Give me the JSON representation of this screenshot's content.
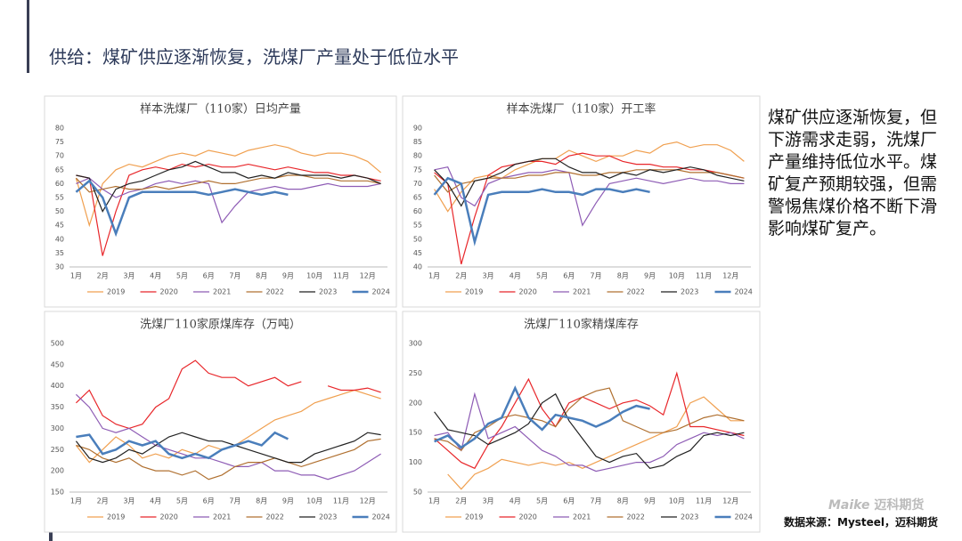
{
  "title": "供给：煤矿供应逐渐恢复，洗煤厂产量处于低位水平",
  "summary": "煤矿供应逐渐恢复，但下游需求走弱，洗煤厂产量维持低位水平。煤矿复产预期较强，但需警惕焦煤价格不断下滑影响煤矿复产。",
  "logo_brand": "Maike",
  "logo_name": "迈科期货",
  "source": "数据来源：Mysteel，迈科期货",
  "chart_data": [
    {
      "type": "line",
      "title": "样本洗煤厂（110家）日均产量",
      "categories": [
        "1月",
        null,
        "2月",
        null,
        "3月",
        null,
        "4月",
        null,
        "5月",
        null,
        "6月",
        null,
        "7月",
        null,
        "8月",
        null,
        "9月",
        null,
        "10月",
        null,
        "11月",
        null,
        "12月",
        null
      ],
      "ylim": [
        30,
        80
      ],
      "yticks": [
        30,
        35,
        40,
        45,
        50,
        55,
        60,
        65,
        70,
        75,
        80
      ],
      "series": [
        {
          "name": "2019",
          "color": "#f0a050",
          "values": [
            62,
            45,
            60,
            65,
            67,
            66,
            68,
            70,
            71,
            70,
            72,
            71,
            70,
            72,
            73,
            74,
            73,
            71,
            70,
            71,
            71,
            70,
            68,
            64
          ]
        },
        {
          "name": "2020",
          "color": "#e8262a",
          "values": [
            63,
            62,
            34,
            50,
            63,
            65,
            66,
            65,
            67,
            66,
            67,
            66,
            66,
            67,
            66,
            65,
            66,
            65,
            64,
            64,
            63,
            63,
            62,
            61
          ]
        },
        {
          "name": "2021",
          "color": "#8e5cb5",
          "values": [
            60,
            62,
            58,
            55,
            57,
            58,
            60,
            61,
            60,
            61,
            60,
            46,
            52,
            57,
            58,
            59,
            58,
            58,
            59,
            60,
            59,
            59,
            59,
            60
          ]
        },
        {
          "name": "2022",
          "color": "#b07030",
          "values": [
            62,
            57,
            58,
            59,
            58,
            58,
            59,
            58,
            59,
            60,
            61,
            60,
            60,
            61,
            62,
            62,
            63,
            63,
            62,
            62,
            61,
            61,
            61,
            60
          ]
        },
        {
          "name": "2023",
          "color": "#222222",
          "values": [
            63,
            62,
            50,
            58,
            60,
            61,
            63,
            65,
            66,
            68,
            66,
            64,
            64,
            62,
            63,
            62,
            64,
            63,
            63,
            63,
            62,
            63,
            62,
            60
          ]
        },
        {
          "name": "2024",
          "color": "#4a7ebb",
          "values": [
            57,
            61,
            55,
            42,
            55,
            57,
            57,
            57,
            57,
            57,
            56,
            57,
            58,
            57,
            56,
            57,
            56,
            null,
            null,
            null,
            null,
            null,
            null,
            null
          ]
        }
      ]
    },
    {
      "type": "line",
      "title": "样本洗煤厂（110家）开工率",
      "categories": [
        "1月",
        null,
        "2月",
        null,
        "3月",
        null,
        "4月",
        null,
        "5月",
        null,
        "6月",
        null,
        "7月",
        null,
        "8月",
        null,
        "9月",
        null,
        "10月",
        null,
        "11月",
        null,
        "12月",
        null
      ],
      "ylim": [
        40,
        90
      ],
      "yticks": [
        40,
        45,
        50,
        55,
        60,
        65,
        70,
        75,
        80,
        85,
        90
      ],
      "series": [
        {
          "name": "2019",
          "color": "#f0a050",
          "values": [
            68,
            60,
            67,
            72,
            73,
            72,
            75,
            77,
            79,
            79,
            82,
            80,
            78,
            80,
            80,
            82,
            81,
            84,
            85,
            83,
            84,
            84,
            82,
            78
          ]
        },
        {
          "name": "2020",
          "color": "#e8262a",
          "values": [
            74,
            70,
            41,
            58,
            73,
            76,
            77,
            78,
            78,
            77,
            80,
            81,
            80,
            80,
            78,
            77,
            77,
            76,
            76,
            75,
            75,
            74,
            73,
            72
          ]
        },
        {
          "name": "2021",
          "color": "#8e5cb5",
          "values": [
            75,
            76,
            65,
            62,
            70,
            72,
            73,
            74,
            74,
            75,
            74,
            55,
            63,
            70,
            71,
            72,
            71,
            70,
            71,
            72,
            71,
            71,
            70,
            70
          ]
        },
        {
          "name": "2022",
          "color": "#b07030",
          "values": [
            73,
            67,
            70,
            71,
            72,
            72,
            72,
            73,
            73,
            74,
            74,
            73,
            73,
            74,
            74,
            75,
            75,
            75,
            75,
            74,
            74,
            74,
            73,
            72
          ]
        },
        {
          "name": "2023",
          "color": "#222222",
          "values": [
            75,
            70,
            62,
            71,
            72,
            74,
            77,
            78,
            79,
            79,
            76,
            74,
            74,
            72,
            74,
            73,
            75,
            74,
            75,
            76,
            75,
            73,
            72,
            71
          ]
        },
        {
          "name": "2024",
          "color": "#4a7ebb",
          "values": [
            66,
            72,
            70,
            49,
            66,
            67,
            67,
            67,
            68,
            67,
            67,
            66,
            68,
            68,
            67,
            68,
            67,
            null,
            null,
            null,
            null,
            null,
            null,
            null
          ]
        }
      ]
    },
    {
      "type": "line",
      "title": "洗煤厂110家原煤库存（万吨）",
      "categories": [
        "1月",
        null,
        "2月",
        null,
        "3月",
        null,
        "4月",
        null,
        "5月",
        null,
        "6月",
        null,
        "7月",
        null,
        "8月",
        null,
        "9月",
        null,
        "10月",
        null,
        "11月",
        null,
        "12月",
        null
      ],
      "ylim": [
        150,
        500
      ],
      "yticks": [
        150,
        200,
        250,
        300,
        350,
        400,
        450,
        500
      ],
      "series": [
        {
          "name": "2019",
          "color": "#f0a050",
          "values": [
            260,
            220,
            250,
            280,
            260,
            230,
            240,
            230,
            250,
            240,
            260,
            250,
            260,
            280,
            300,
            320,
            330,
            340,
            360,
            370,
            380,
            390,
            380,
            370
          ]
        },
        {
          "name": "2020",
          "color": "#e8262a",
          "values": [
            360,
            390,
            330,
            310,
            300,
            310,
            350,
            370,
            440,
            460,
            430,
            420,
            420,
            400,
            410,
            420,
            400,
            410,
            null,
            400,
            390,
            390,
            395,
            385
          ]
        },
        {
          "name": "2021",
          "color": "#8e5cb5",
          "values": [
            380,
            350,
            300,
            290,
            300,
            280,
            260,
            250,
            240,
            230,
            230,
            220,
            210,
            210,
            220,
            200,
            200,
            190,
            190,
            180,
            190,
            200,
            220,
            240
          ]
        },
        {
          "name": "2022",
          "color": "#b07030",
          "values": [
            260,
            250,
            230,
            220,
            230,
            210,
            200,
            200,
            190,
            200,
            180,
            190,
            210,
            220,
            220,
            230,
            220,
            210,
            220,
            230,
            240,
            250,
            270,
            275
          ]
        },
        {
          "name": "2023",
          "color": "#222222",
          "values": [
            270,
            230,
            220,
            230,
            250,
            240,
            260,
            280,
            290,
            280,
            270,
            270,
            260,
            250,
            240,
            230,
            220,
            220,
            240,
            250,
            260,
            270,
            290,
            285
          ]
        },
        {
          "name": "2024",
          "color": "#4a7ebb",
          "values": [
            280,
            285,
            240,
            250,
            270,
            260,
            270,
            240,
            230,
            240,
            230,
            250,
            260,
            270,
            260,
            290,
            275,
            null,
            null,
            null,
            null,
            null,
            null,
            null
          ]
        }
      ]
    },
    {
      "type": "line",
      "title": "洗煤厂110家精煤库存",
      "categories": [
        "1月",
        null,
        "2月",
        null,
        "3月",
        null,
        "4月",
        null,
        "5月",
        null,
        "6月",
        null,
        "7月",
        null,
        "8月",
        null,
        "9月",
        null,
        "10月",
        null,
        "11月",
        null,
        "12月",
        null
      ],
      "ylim": [
        50,
        300
      ],
      "yticks": [
        50,
        100,
        150,
        200,
        250,
        300
      ],
      "series": [
        {
          "name": "2019",
          "color": "#f0a050",
          "values": [
            null,
            80,
            55,
            80,
            90,
            105,
            100,
            95,
            100,
            95,
            100,
            90,
            100,
            110,
            120,
            130,
            140,
            150,
            160,
            200,
            210,
            190,
            170,
            170
          ]
        },
        {
          "name": "2020",
          "color": "#e8262a",
          "values": [
            140,
            120,
            100,
            90,
            130,
            160,
            200,
            240,
            190,
            160,
            200,
            210,
            200,
            190,
            200,
            205,
            195,
            180,
            250,
            160,
            160,
            155,
            150,
            145
          ]
        },
        {
          "name": "2021",
          "color": "#8e5cb5",
          "values": [
            145,
            150,
            120,
            215,
            140,
            150,
            160,
            140,
            120,
            110,
            95,
            95,
            85,
            90,
            95,
            100,
            100,
            110,
            130,
            140,
            150,
            145,
            150,
            140
          ]
        },
        {
          "name": "2022",
          "color": "#b07030",
          "values": [
            140,
            135,
            120,
            150,
            160,
            175,
            180,
            175,
            170,
            160,
            190,
            210,
            220,
            225,
            170,
            160,
            150,
            150,
            155,
            165,
            175,
            180,
            175,
            170
          ]
        },
        {
          "name": "2023",
          "color": "#222222",
          "values": [
            185,
            155,
            150,
            145,
            130,
            140,
            150,
            165,
            200,
            215,
            170,
            140,
            110,
            100,
            110,
            115,
            90,
            95,
            110,
            120,
            145,
            150,
            145,
            150
          ]
        },
        {
          "name": "2024",
          "color": "#4a7ebb",
          "values": [
            135,
            145,
            125,
            140,
            165,
            175,
            225,
            175,
            155,
            180,
            175,
            170,
            160,
            170,
            185,
            195,
            190,
            null,
            null,
            null,
            null,
            null,
            null,
            null
          ]
        }
      ]
    }
  ]
}
